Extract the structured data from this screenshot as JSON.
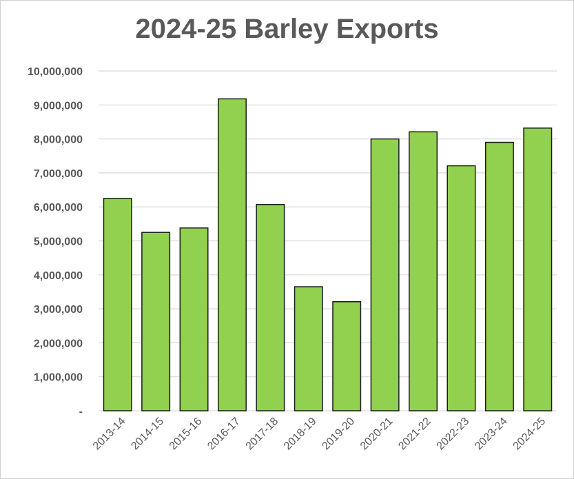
{
  "chart_data": {
    "type": "bar",
    "title": "2024-25 Barley Exports",
    "xlabel": "",
    "ylabel": "",
    "categories": [
      "2013-14",
      "2014-15",
      "2015-16",
      "2016-17",
      "2017-18",
      "2018-19",
      "2019-20",
      "2020-21",
      "2021-22",
      "2022-23",
      "2023-24",
      "2024-25"
    ],
    "values": [
      6250000,
      5250000,
      5380000,
      9180000,
      6070000,
      3650000,
      3210000,
      8000000,
      8210000,
      7210000,
      7900000,
      8320000
    ],
    "ylim": [
      0,
      10000000
    ],
    "yticks": [
      0,
      1000000,
      2000000,
      3000000,
      4000000,
      5000000,
      6000000,
      7000000,
      8000000,
      9000000,
      10000000
    ],
    "ytick_labels": [
      "-",
      "1,000,000",
      "2,000,000",
      "3,000,000",
      "4,000,000",
      "5,000,000",
      "6,000,000",
      "7,000,000",
      "8,000,000",
      "9,000,000",
      "10,000,000"
    ],
    "grid": true,
    "legend": "none",
    "bar_color": "#92d050",
    "bar_edge_color": "#1a1a1a",
    "grid_color": "#d9d9d9",
    "text_color": "#595959"
  }
}
